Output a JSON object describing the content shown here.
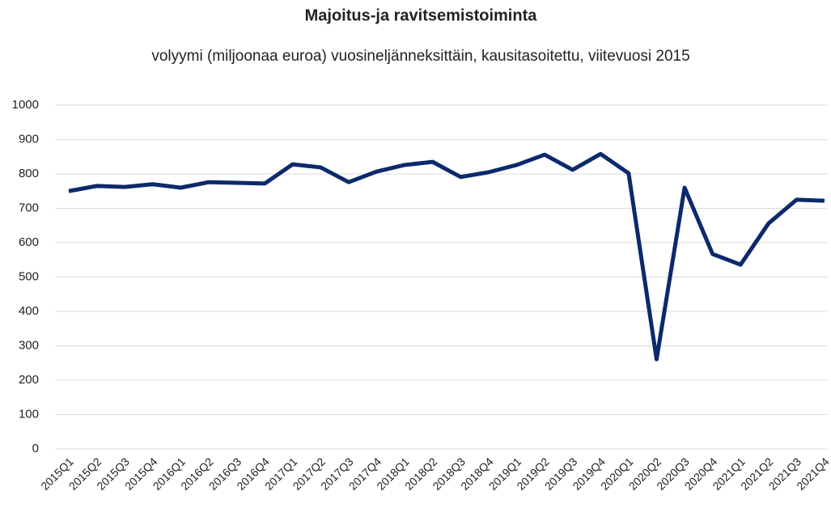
{
  "chart_data": {
    "type": "line",
    "title": "Majoitus-ja ravitsemistoiminta",
    "subtitle": "volyymi (miljoonaa euroa) vuosineljänneksittäin, kausitasoitettu, viitevuosi 2015",
    "categories": [
      "2015Q1",
      "2015Q2",
      "2015Q3",
      "2015Q4",
      "2016Q1",
      "2016Q2",
      "2016Q3",
      "2016Q4",
      "2017Q1",
      "2017Q2",
      "2017Q3",
      "2017Q4",
      "2018Q1",
      "2018Q2",
      "2018Q3",
      "2018Q4",
      "2019Q1",
      "2019Q2",
      "2019Q3",
      "2019Q4",
      "2020Q1",
      "2020Q2",
      "2020Q3",
      "2020Q4",
      "2021Q1",
      "2021Q2",
      "2021Q3",
      "2021Q4"
    ],
    "values": [
      750,
      765,
      762,
      770,
      760,
      776,
      774,
      772,
      828,
      819,
      776,
      807,
      826,
      835,
      791,
      805,
      826,
      856,
      812,
      858,
      802,
      261,
      760,
      567,
      536,
      656,
      725,
      722
    ],
    "color": "#0b2a6b",
    "ylim": [
      0,
      1000
    ],
    "yticks": [
      0,
      100,
      200,
      300,
      400,
      500,
      600,
      700,
      800,
      900,
      1000
    ],
    "grid": true
  }
}
